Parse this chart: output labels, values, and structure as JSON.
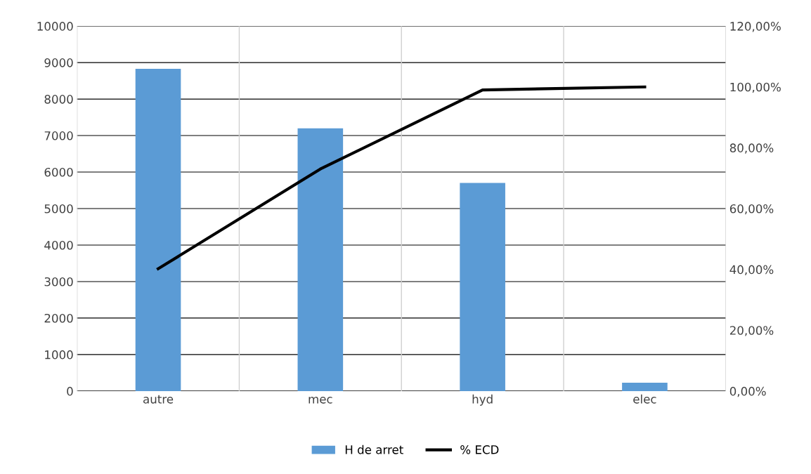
{
  "chart_data": {
    "type": "bar",
    "categories": [
      "autre",
      "mec",
      "hyd",
      "elec"
    ],
    "series": [
      {
        "name": "H de arret",
        "color": "#5b9bd5",
        "values": [
          8830,
          7200,
          5700,
          230
        ]
      },
      {
        "name": "% ECD",
        "type": "line",
        "axis": "y2",
        "color": "#000000",
        "values": [
          40.2,
          73.0,
          99.0,
          100.0
        ]
      }
    ],
    "ylim": [
      0,
      10000
    ],
    "yticks": [
      0,
      1000,
      2000,
      3000,
      4000,
      5000,
      6000,
      7000,
      8000,
      9000,
      10000
    ],
    "y2lim": [
      0,
      120
    ],
    "y2ticks": [
      {
        "value": 0,
        "label": "0,00%"
      },
      {
        "value": 20,
        "label": "20,00%"
      },
      {
        "value": 40,
        "label": "40,00%"
      },
      {
        "value": 60,
        "label": "60,00%"
      },
      {
        "value": 80,
        "label": "80,00%"
      },
      {
        "value": 100,
        "label": "100,00%"
      },
      {
        "value": 120,
        "label": "120,00%"
      }
    ],
    "grid": "y",
    "legend": "bottom",
    "marker": "none",
    "line_style": "solid"
  }
}
